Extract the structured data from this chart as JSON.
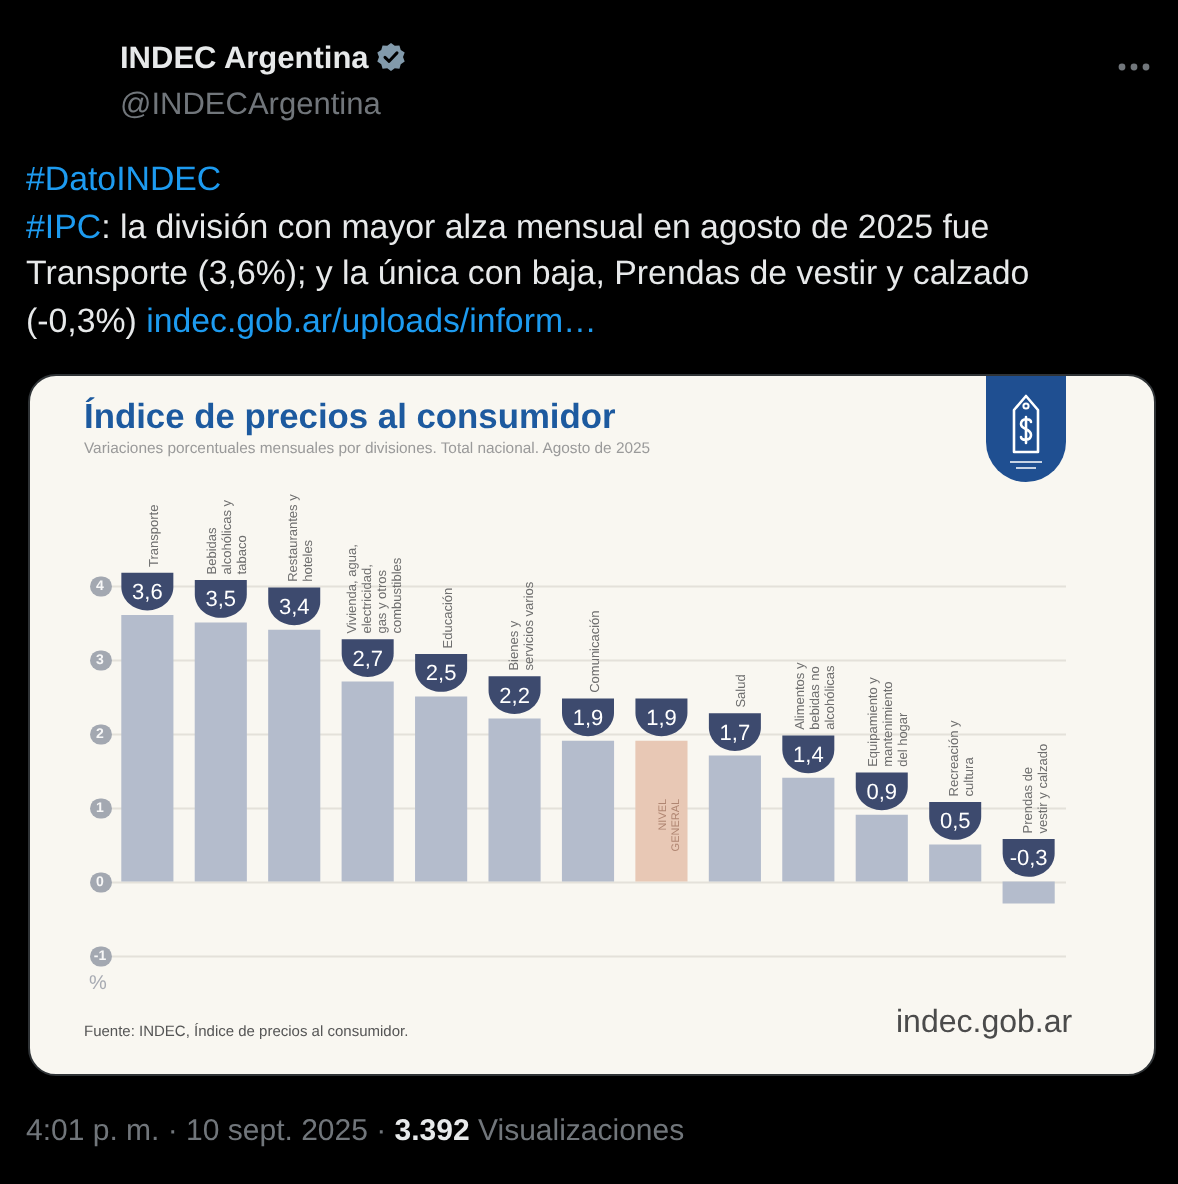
{
  "chart_data": {
    "type": "bar",
    "title": "Índice de precios al consumidor",
    "subtitle": "Variaciones porcentuales mensuales por divisiones. Total nacional. Agosto de 2025",
    "ylabel": "%",
    "categories": [
      "Transporte",
      "Bebidas alcohólicas y tabaco",
      "Restaurantes y hoteles",
      "Vivienda, agua, electricidad, gas y otros combustibles",
      "Educación",
      "Bienes y servicios varios",
      "Comunicación",
      "NIVEL GENERAL",
      "Salud",
      "Alimentos y bebidas no alcohólicas",
      "Equipamiento y mantenimiento del hogar",
      "Recreación y cultura",
      "Prendas de vestir y calzado"
    ],
    "values": [
      3.6,
      3.5,
      3.4,
      2.7,
      2.5,
      2.2,
      1.9,
      1.9,
      1.7,
      1.4,
      0.9,
      0.5,
      -0.3
    ],
    "colors": [
      "#b4bccc",
      "#b4bccc",
      "#b4bccc",
      "#b4bccc",
      "#b4bccc",
      "#b4bccc",
      "#b4bccc",
      "#e8c8b5",
      "#b4bccc",
      "#b4bccc",
      "#b4bccc",
      "#b4bccc",
      "#b4bccc"
    ],
    "value_labels": [
      "3,6",
      "3,5",
      "3,4",
      "2,7",
      "2,5",
      "2,2",
      "1,9",
      "1,9",
      "1,7",
      "1,4",
      "0,9",
      "0,5",
      "-0,3"
    ],
    "ylim": [
      -1,
      4
    ],
    "yticks": [
      -1,
      0,
      1,
      2,
      3,
      4
    ],
    "grid": "y",
    "annotations": [
      "INDEC Argentina",
      "@INDECArgentina",
      "#DatoINDEC",
      "#IPC",
      ": la división con mayor alza mensual en agosto de 2025 fue",
      "Transporte (3,6%); y la única con baja, Prendas de vestir y calzado",
      "(-0,3%)",
      "indec.gob.ar/uploads/inform…",
      "Fuente: INDEC, Índice de precios al consumidor.",
      "indec.gob.ar",
      "4:01 p. m. · 10 sept. 2025 ·",
      "3.392",
      "Visualizaciones"
    ]
  }
}
